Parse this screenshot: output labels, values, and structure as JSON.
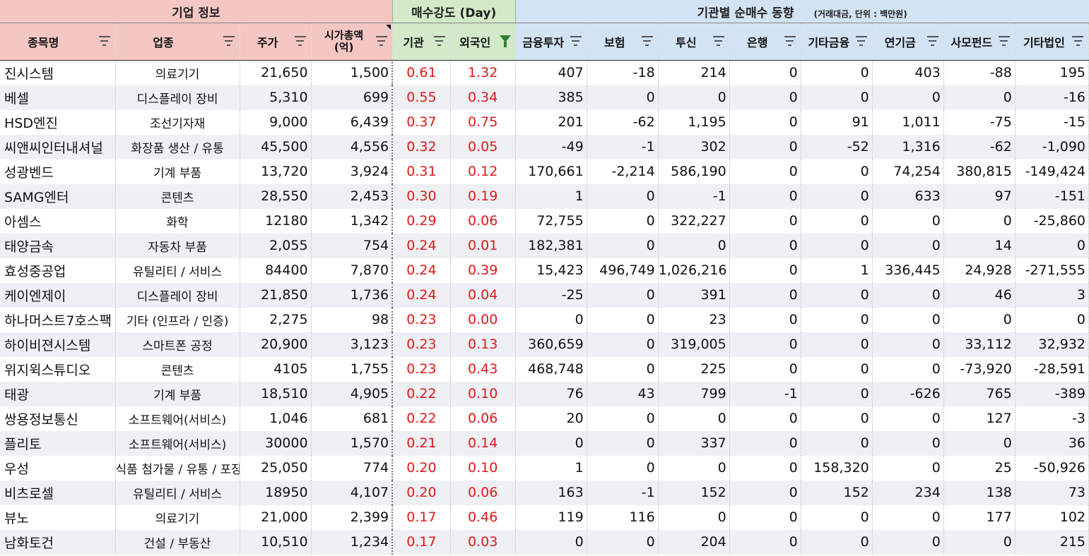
{
  "group_headers": {
    "company_info": "기업 정보",
    "buy_strength": "매수강도 (Day)",
    "institution_flow": "기관별 순매수 동향",
    "institution_note": "(거래대금, 단위 : 백만원)"
  },
  "columns": [
    {
      "label": "종목명",
      "filter": "icon"
    },
    {
      "label": "업종",
      "filter": "icon"
    },
    {
      "label": "주가",
      "filter": "icon"
    },
    {
      "label": "시가총액",
      "label2": "(억)",
      "filter": "icon"
    },
    {
      "label": "기관",
      "filter": "icon"
    },
    {
      "label": "외국인",
      "filter": "active-funnel"
    },
    {
      "label": "금융투자",
      "filter": "icon"
    },
    {
      "label": "보험",
      "filter": "icon"
    },
    {
      "label": "투신",
      "filter": "icon"
    },
    {
      "label": "은행",
      "filter": "icon"
    },
    {
      "label": "기타금융",
      "filter": "icon"
    },
    {
      "label": "연기금",
      "filter": "icon"
    },
    {
      "label": "사모펀드",
      "filter": "icon"
    },
    {
      "label": "기타법인",
      "filter": "icon"
    }
  ],
  "rows": [
    [
      "진시스템",
      "의료기기",
      "21,650",
      "1,500",
      "0.61",
      "1.32",
      "407",
      "-18",
      "214",
      "0",
      "0",
      "403",
      "-88",
      "195"
    ],
    [
      "베셀",
      "디스플레이 장비",
      "5,310",
      "699",
      "0.55",
      "0.34",
      "385",
      "0",
      "0",
      "0",
      "0",
      "0",
      "0",
      "-16"
    ],
    [
      "HSD엔진",
      "조선기자재",
      "9,000",
      "6,439",
      "0.37",
      "0.75",
      "201",
      "-62",
      "1,195",
      "0",
      "91",
      "1,011",
      "-75",
      "-15"
    ],
    [
      "씨앤씨인터내셔널",
      "화장품 생산 / 유통",
      "45,500",
      "4,556",
      "0.32",
      "0.05",
      "-49",
      "-1",
      "302",
      "0",
      "-52",
      "1,316",
      "-62",
      "-1,090"
    ],
    [
      "성광벤드",
      "기계 부품",
      "13,720",
      "3,924",
      "0.31",
      "0.12",
      "170,661",
      "-2,214",
      "586,190",
      "0",
      "0",
      "74,254",
      "380,815",
      "-149,424"
    ],
    [
      "SAMG엔터",
      "콘텐츠",
      "28,550",
      "2,453",
      "0.30",
      "0.19",
      "1",
      "0",
      "-1",
      "0",
      "0",
      "633",
      "97",
      "-151"
    ],
    [
      "아셈스",
      "화학",
      "12180",
      "1,342",
      "0.29",
      "0.06",
      "72,755",
      "0",
      "322,227",
      "0",
      "0",
      "0",
      "0",
      "-25,860"
    ],
    [
      "태양금속",
      "자동차 부품",
      "2,055",
      "754",
      "0.24",
      "0.01",
      "182,381",
      "0",
      "0",
      "0",
      "0",
      "0",
      "14",
      "0"
    ],
    [
      "효성중공업",
      "유틸리티 / 서비스",
      "84400",
      "7,870",
      "0.24",
      "0.39",
      "15,423",
      "496,749",
      "1,026,216",
      "0",
      "1",
      "336,445",
      "24,928",
      "-271,555"
    ],
    [
      "케이엔제이",
      "디스플레이 장비",
      "21,850",
      "1,736",
      "0.24",
      "0.04",
      "-25",
      "0",
      "391",
      "0",
      "0",
      "0",
      "46",
      "3"
    ],
    [
      "하나머스트7호스팩",
      "기타 (인프라 / 인증)",
      "2,275",
      "98",
      "0.23",
      "0.00",
      "0",
      "0",
      "23",
      "0",
      "0",
      "0",
      "0",
      "0"
    ],
    [
      "하이비젼시스템",
      "스마트폰 공정",
      "20,900",
      "3,123",
      "0.23",
      "0.13",
      "360,659",
      "0",
      "319,005",
      "0",
      "0",
      "0",
      "33,112",
      "32,932"
    ],
    [
      "위지윅스튜디오",
      "콘텐츠",
      "4105",
      "1,755",
      "0.23",
      "0.43",
      "468,748",
      "0",
      "225",
      "0",
      "0",
      "0",
      "-73,920",
      "-28,591"
    ],
    [
      "태광",
      "기계 부품",
      "18,510",
      "4,905",
      "0.22",
      "0.10",
      "76",
      "43",
      "799",
      "-1",
      "0",
      "-626",
      "765",
      "-389"
    ],
    [
      "쌍용정보통신",
      "소프트웨어(서비스)",
      "1,046",
      "681",
      "0.22",
      "0.06",
      "20",
      "0",
      "0",
      "0",
      "0",
      "0",
      "127",
      "-3"
    ],
    [
      "플리토",
      "소프트웨어(서비스)",
      "30000",
      "1,570",
      "0.21",
      "0.14",
      "0",
      "0",
      "337",
      "0",
      "0",
      "0",
      "0",
      "36"
    ],
    [
      "우성",
      "식품 첨가물 / 유통 / 포장",
      "25,050",
      "774",
      "0.20",
      "0.10",
      "1",
      "0",
      "0",
      "0",
      "158,320",
      "0",
      "25",
      "-50,926"
    ],
    [
      "비츠로셀",
      "유틸리티 / 서비스",
      "18950",
      "4,107",
      "0.20",
      "0.06",
      "163",
      "-1",
      "152",
      "0",
      "152",
      "234",
      "138",
      "73"
    ],
    [
      "뷰노",
      "의료기기",
      "21,000",
      "2,399",
      "0.17",
      "0.46",
      "119",
      "116",
      "0",
      "0",
      "0",
      "0",
      "177",
      "102"
    ],
    [
      "남화토건",
      "건설 / 부동산",
      "10,510",
      "1,234",
      "0.17",
      "0.03",
      "0",
      "0",
      "204",
      "0",
      "0",
      "0",
      "0",
      "215"
    ]
  ]
}
